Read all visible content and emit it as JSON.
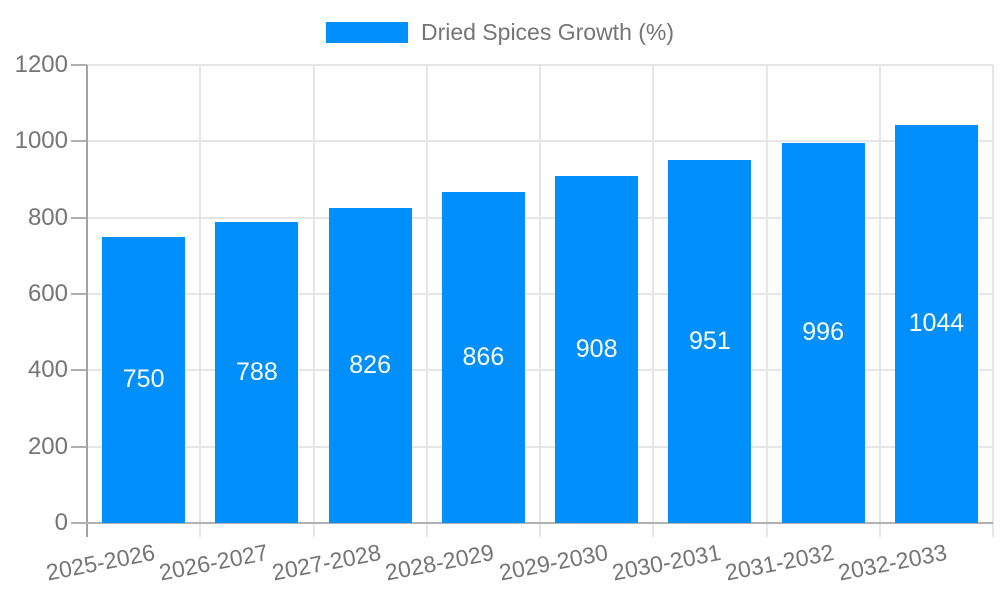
{
  "legend": {
    "label": "Dried Spices Growth (%)"
  },
  "chart_data": {
    "type": "bar",
    "title": "",
    "xlabel": "",
    "ylabel": "",
    "legend_entries": [
      "Dried Spices Growth (%)"
    ],
    "legend_position": "top-center",
    "categories": [
      "2025-2026",
      "2026-2027",
      "2027-2028",
      "2028-2029",
      "2029-2030",
      "2030-2031",
      "2031-2032",
      "2032-2033"
    ],
    "series": [
      {
        "name": "Dried Spices Growth (%)",
        "values": [
          750,
          788,
          826,
          866,
          908,
          951,
          996,
          1044
        ]
      }
    ],
    "value_labels_shown": true,
    "ylim": [
      0,
      1200
    ],
    "y_ticks": [
      0,
      200,
      400,
      600,
      800,
      1000,
      1200
    ],
    "grid": true,
    "colors": {
      "bar": "#008FFB",
      "value_label": "#ffffff",
      "tick_label": "#757575",
      "legend_text": "#757575",
      "gridline": "#e6e6e6",
      "axis_x": "#b1b1b1",
      "axis_y": "#a3a3a3"
    }
  }
}
